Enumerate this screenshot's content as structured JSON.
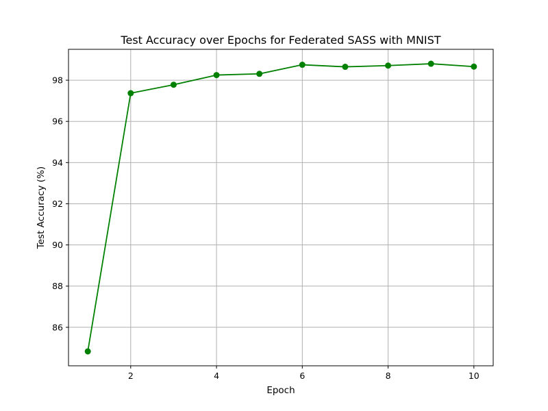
{
  "chart_data": {
    "type": "line",
    "title": "Test Accuracy over Epochs for Federated SASS with MNIST",
    "xlabel": "Epoch",
    "ylabel": "Test Accuracy (%)",
    "x": [
      1,
      2,
      3,
      4,
      5,
      6,
      7,
      8,
      9,
      10
    ],
    "series": [
      {
        "values": [
          84.83,
          97.37,
          97.78,
          98.25,
          98.31,
          98.75,
          98.65,
          98.71,
          98.8,
          98.66
        ],
        "color": "#008000",
        "marker": "circle"
      }
    ],
    "xlim": [
      0.55,
      10.45
    ],
    "ylim": [
      84.13,
      99.5
    ],
    "xticks": [
      2,
      4,
      6,
      8,
      10
    ],
    "xtick_labels": [
      "2",
      "4",
      "6",
      "8",
      "10"
    ],
    "yticks": [
      86,
      88,
      90,
      92,
      94,
      96,
      98
    ],
    "ytick_labels": [
      "86",
      "88",
      "90",
      "92",
      "94",
      "96",
      "98"
    ],
    "grid": true,
    "grid_color": "#b0b0b0",
    "axes_color": "#000000"
  }
}
